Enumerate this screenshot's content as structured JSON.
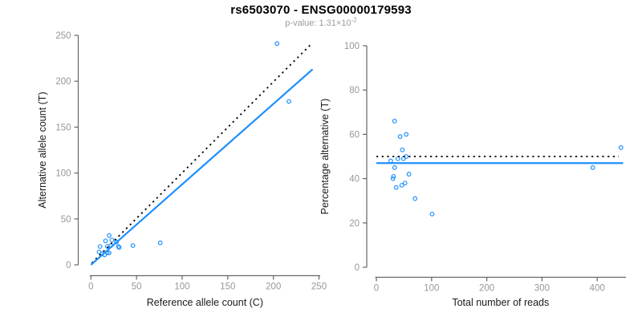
{
  "header": {
    "title": "rs6503070 - ENSG00000179593",
    "subtitle_base": "p-value: 1.31×10",
    "subtitle_exponent": "-2"
  },
  "colors": {
    "accent_blue": "#1E90FF",
    "identity_line": "#000000",
    "axis_line": "#666666",
    "tick_label": "#979797",
    "axis_title": "#1a1a1a"
  },
  "chart_data": [
    {
      "type": "scatter",
      "name": "allele-counts-scatter",
      "xlabel": "Reference allele count (C)",
      "ylabel": "Alternative allele count (T)",
      "xlim": [
        0,
        250
      ],
      "ylim": [
        0,
        250
      ],
      "xticks": [
        0,
        50,
        100,
        150,
        200,
        250
      ],
      "yticks": [
        0,
        50,
        100,
        150,
        200,
        250
      ],
      "grid": false,
      "points": [
        [
          204,
          241
        ],
        [
          217,
          178
        ],
        [
          76,
          24
        ],
        [
          46,
          21
        ],
        [
          20,
          32
        ],
        [
          23,
          27
        ],
        [
          16,
          26
        ],
        [
          28,
          25
        ],
        [
          10,
          20
        ],
        [
          18,
          20
        ],
        [
          22,
          21
        ],
        [
          30,
          20
        ],
        [
          31,
          19
        ],
        [
          9,
          14
        ],
        [
          12,
          12
        ],
        [
          15,
          11
        ],
        [
          18,
          13
        ],
        [
          20,
          13
        ]
      ],
      "lines": [
        {
          "name": "identity-line",
          "style": "dotted",
          "color": "#000000",
          "x1": 1,
          "y1": 2,
          "x2": 241,
          "y2": 240
        },
        {
          "name": "regression-line",
          "style": "solid",
          "color": "#1E90FF",
          "x1": 0,
          "y1": 0,
          "x2": 243,
          "y2": 213
        }
      ]
    },
    {
      "type": "scatter",
      "name": "percentage-vs-reads-scatter",
      "xlabel": "Total number of reads",
      "ylabel": "Percentage alternative (T)",
      "xlim": [
        0,
        450
      ],
      "ylim": [
        0,
        100
      ],
      "xticks": [
        0,
        100,
        200,
        300,
        400
      ],
      "yticks": [
        0,
        20,
        40,
        60,
        80,
        100
      ],
      "grid": false,
      "points": [
        [
          443,
          54
        ],
        [
          392,
          45
        ],
        [
          101,
          24
        ],
        [
          70,
          31
        ],
        [
          33,
          66
        ],
        [
          43,
          59
        ],
        [
          54,
          60
        ],
        [
          47,
          53
        ],
        [
          54,
          50
        ],
        [
          26,
          48
        ],
        [
          39,
          49
        ],
        [
          49,
          49
        ],
        [
          33,
          45
        ],
        [
          31,
          41
        ],
        [
          30,
          40
        ],
        [
          59,
          42
        ],
        [
          52,
          38
        ],
        [
          46,
          37
        ],
        [
          36,
          36
        ]
      ],
      "lines": [
        {
          "name": "expected-50pct-line",
          "style": "dotted",
          "color": "#000000",
          "x1": 0,
          "y1": 50,
          "x2": 439,
          "y2": 50
        },
        {
          "name": "fitted-percentage-line",
          "style": "solid",
          "color": "#1E90FF",
          "x1": 0,
          "y1": 47,
          "x2": 447,
          "y2": 47
        }
      ]
    }
  ]
}
